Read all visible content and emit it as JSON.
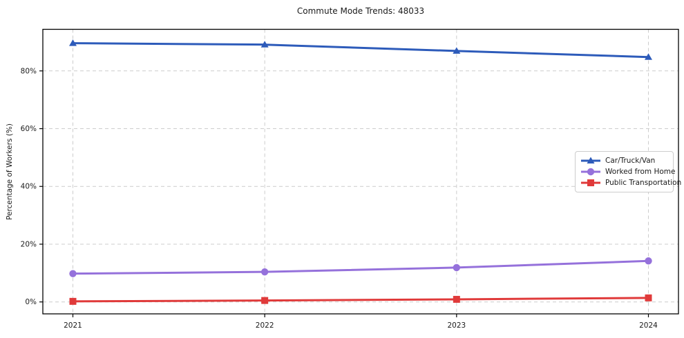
{
  "chart_data": {
    "type": "line",
    "title": "Commute Mode Trends: 48033",
    "xlabel": "",
    "ylabel": "Percentage of Workers (%)",
    "categories": [
      "2021",
      "2022",
      "2023",
      "2024"
    ],
    "series": [
      {
        "name": "Car/Truck/Van",
        "color": "#2d5bba",
        "marker": "triangle",
        "values": [
          89.6,
          89.1,
          86.9,
          84.8
        ]
      },
      {
        "name": "Worked from Home",
        "color": "#9571db",
        "marker": "circle",
        "values": [
          9.8,
          10.4,
          11.9,
          14.2
        ]
      },
      {
        "name": "Public Transportation",
        "color": "#e03a3a",
        "marker": "square",
        "values": [
          0.2,
          0.5,
          0.9,
          1.4
        ]
      }
    ],
    "y_ticks": [
      {
        "v": 0,
        "label": "0%"
      },
      {
        "v": 20,
        "label": "20%"
      },
      {
        "v": 40,
        "label": "40%"
      },
      {
        "v": 60,
        "label": "60%"
      },
      {
        "v": 80,
        "label": "80%"
      }
    ],
    "ylim": [
      -4.13,
      94.4
    ],
    "grid": "dashed",
    "grid_color": "#cccccc",
    "axis_color": "#000000",
    "legend_position": "right-middle"
  }
}
